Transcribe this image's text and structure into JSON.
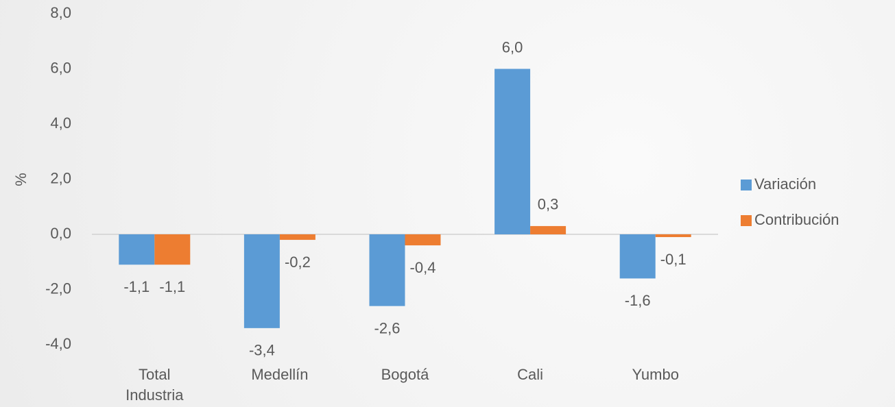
{
  "chart_data": {
    "type": "bar",
    "y_label": "%",
    "categories": [
      "Total Industria",
      "Medellín",
      "Bogotá",
      "Cali",
      "Yumbo"
    ],
    "series": [
      {
        "name": "Variación",
        "color": "#5b9bd5",
        "values": [
          -1.1,
          -3.4,
          -2.6,
          6.0,
          -1.6
        ],
        "value_labels": [
          "-1,1",
          "-3,4",
          "-2,6",
          "6,0",
          "-1,6"
        ]
      },
      {
        "name": "Contribución",
        "color": "#ed7d31",
        "values": [
          -1.1,
          -0.2,
          -0.4,
          0.3,
          -0.1
        ],
        "value_labels": [
          "-1,1",
          "-0,2",
          "-0,4",
          "0,3",
          "-0,1"
        ]
      }
    ],
    "ylim": [
      -4,
      8
    ],
    "yticks": [
      {
        "value": -4,
        "label": "-4,0"
      },
      {
        "value": -2,
        "label": "-2,0"
      },
      {
        "value": 0,
        "label": "0,0"
      },
      {
        "value": 2,
        "label": "2,0"
      },
      {
        "value": 4,
        "label": "4,0"
      },
      {
        "value": 6,
        "label": "6,0"
      },
      {
        "value": 8,
        "label": "8,0"
      }
    ],
    "legend": "right"
  }
}
